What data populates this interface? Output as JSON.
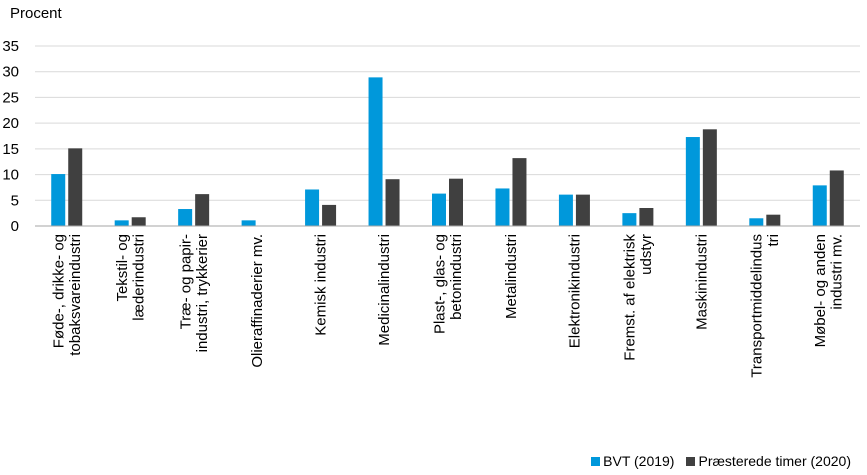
{
  "chart_data": {
    "type": "bar",
    "ylabel": "Procent",
    "ylim": [
      0,
      35
    ],
    "yticks": [
      0,
      5,
      10,
      15,
      20,
      25,
      30,
      35
    ],
    "grid": true,
    "legend_position": "bottom-right",
    "categories": [
      [
        "Føde-, drikke- og",
        "tobaksvareindustri"
      ],
      [
        "Tekstil- og",
        "læderindustri"
      ],
      [
        "Træ- og papir-",
        "industri, trykkerier"
      ],
      [
        "Olieraffinaderier mv."
      ],
      [
        "Kemisk industri"
      ],
      [
        "Medicinalindustri"
      ],
      [
        "Plast-, glas- og",
        "betonindustri"
      ],
      [
        "Metalindustri"
      ],
      [
        "Elektronikindustri"
      ],
      [
        "Fremst. af elektrisk",
        "udstyr"
      ],
      [
        "Maskinindustri"
      ],
      [
        "Transportmiddelindus",
        "tri"
      ],
      [
        "Møbel- og anden",
        "industri mv."
      ]
    ],
    "series": [
      {
        "name": "BVT (2019)",
        "color": "#0098DB",
        "values": [
          10.1,
          1.1,
          3.3,
          1.1,
          7.1,
          28.9,
          6.3,
          7.3,
          6.1,
          2.5,
          17.3,
          1.5,
          7.9
        ]
      },
      {
        "name": "Præsterede timer (2020)",
        "color": "#404040",
        "values": [
          15.1,
          1.7,
          6.2,
          0,
          4.1,
          9.1,
          9.2,
          13.2,
          6.1,
          3.5,
          18.8,
          2.2,
          10.8
        ]
      }
    ]
  }
}
